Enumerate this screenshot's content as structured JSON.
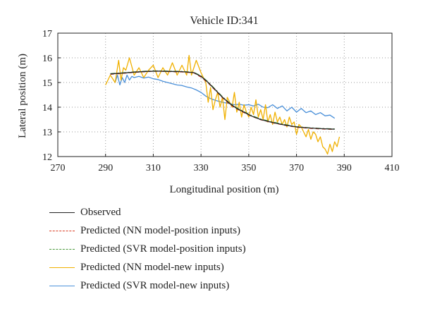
{
  "chart_data": {
    "type": "line",
    "title": "Vehicle ID:341",
    "xlabel": "Longitudinal position (m)",
    "ylabel": "Lateral position (m)",
    "xlim": [
      270,
      410
    ],
    "ylim": [
      12,
      17
    ],
    "xticks": [
      270,
      290,
      310,
      330,
      350,
      370,
      390,
      410
    ],
    "yticks": [
      12,
      13,
      14,
      15,
      16,
      17
    ],
    "grid": "dotted",
    "legend_position": "below",
    "series": [
      {
        "name": "Observed",
        "color": "#222222",
        "dash": "solid",
        "x": [
          292,
          297,
          302,
          307,
          312,
          317,
          322,
          327,
          330,
          333,
          336,
          339,
          342,
          345,
          348,
          351,
          355,
          360,
          365,
          370,
          375,
          380,
          386
        ],
        "y": [
          15.35,
          15.38,
          15.42,
          15.45,
          15.46,
          15.45,
          15.44,
          15.4,
          15.25,
          15.0,
          14.7,
          14.4,
          14.15,
          13.95,
          13.8,
          13.65,
          13.5,
          13.38,
          13.28,
          13.2,
          13.16,
          13.13,
          13.11
        ]
      },
      {
        "name": "Predicted (NN model-position inputs)",
        "color": "#d93a20",
        "dash": "5,4",
        "x": [
          292,
          297,
          302,
          307,
          312,
          317,
          322,
          327,
          330,
          333,
          336,
          339,
          342,
          345,
          348,
          351,
          355,
          360,
          365,
          370,
          375,
          380,
          386
        ],
        "y": [
          15.33,
          15.37,
          15.41,
          15.44,
          15.46,
          15.44,
          15.43,
          15.39,
          15.22,
          14.98,
          14.68,
          14.38,
          14.12,
          13.93,
          13.78,
          13.64,
          13.49,
          13.37,
          13.27,
          13.19,
          13.15,
          13.12,
          13.1
        ]
      },
      {
        "name": "Predicted (SVR model-position inputs)",
        "color": "#4a9a3c",
        "dash": "7,3,2,3",
        "x": [
          292,
          297,
          302,
          307,
          312,
          317,
          322,
          327,
          330,
          333,
          336,
          339,
          342,
          345,
          348,
          351,
          355,
          360,
          365,
          370,
          375,
          380,
          386
        ],
        "y": [
          15.36,
          15.39,
          15.43,
          15.46,
          15.47,
          15.46,
          15.45,
          15.41,
          15.27,
          15.02,
          14.72,
          14.42,
          14.17,
          13.97,
          13.82,
          13.67,
          13.52,
          13.4,
          13.3,
          13.21,
          13.17,
          13.14,
          13.12
        ]
      },
      {
        "name": "Predicted (NN model-new inputs)",
        "color": "#f0b000",
        "dash": "solid",
        "x": [
          290,
          292,
          294,
          295.5,
          296.5,
          297.5,
          298.5,
          300,
          302,
          304,
          306,
          308,
          310,
          312,
          314,
          316,
          318,
          320,
          322,
          324,
          325,
          326,
          328,
          330,
          332,
          333,
          334,
          335,
          336,
          337,
          338,
          339,
          340,
          341,
          342,
          343,
          344,
          345,
          346,
          347,
          348,
          349,
          350,
          351,
          352,
          353,
          354,
          355,
          356,
          357,
          358,
          359,
          360,
          361,
          362,
          363,
          364,
          365,
          366,
          367,
          368,
          369,
          370,
          371,
          372,
          373,
          374,
          375,
          376,
          377,
          378,
          379,
          380,
          381,
          382,
          383,
          384,
          385,
          386,
          387,
          388
        ],
        "y": [
          14.9,
          15.3,
          15.0,
          15.9,
          15.1,
          15.6,
          15.5,
          16.0,
          15.3,
          15.6,
          15.2,
          15.5,
          15.7,
          15.2,
          15.6,
          15.3,
          15.8,
          15.3,
          15.7,
          15.3,
          16.1,
          15.3,
          15.9,
          15.4,
          15.0,
          14.2,
          14.8,
          13.9,
          14.3,
          14.6,
          14.0,
          14.4,
          13.5,
          14.4,
          14.2,
          14.0,
          14.6,
          13.8,
          14.2,
          13.6,
          14.1,
          13.8,
          13.6,
          14.0,
          13.7,
          14.3,
          13.6,
          13.9,
          13.5,
          14.1,
          13.4,
          13.7,
          13.3,
          13.8,
          13.4,
          13.6,
          13.3,
          13.5,
          13.2,
          13.6,
          13.3,
          13.4,
          12.9,
          13.3,
          13.2,
          13.0,
          12.8,
          13.1,
          12.7,
          13.0,
          12.9,
          12.6,
          12.8,
          12.4,
          12.3,
          12.1,
          12.5,
          12.2,
          12.6,
          12.4,
          12.8
        ]
      },
      {
        "name": "Predicted (SVR model-new inputs)",
        "color": "#4a90d9",
        "dash": "solid",
        "x": [
          294,
          295,
          296,
          297,
          298,
          299,
          300,
          301,
          302,
          304,
          306,
          308,
          310,
          312,
          314,
          316,
          318,
          320,
          322,
          324,
          326,
          328,
          330,
          332,
          334,
          336,
          338,
          340,
          342,
          344,
          346,
          348,
          350,
          352,
          354,
          356,
          358,
          360,
          362,
          364,
          366,
          368,
          370,
          372,
          374,
          376,
          378,
          380,
          382,
          384,
          386
        ],
        "y": [
          15.0,
          15.3,
          14.9,
          15.2,
          15.0,
          15.3,
          15.1,
          15.25,
          15.2,
          15.25,
          15.18,
          15.22,
          15.15,
          15.12,
          15.05,
          15.0,
          14.95,
          14.9,
          14.88,
          14.82,
          14.78,
          14.7,
          14.6,
          14.45,
          14.35,
          14.28,
          14.22,
          14.18,
          14.15,
          14.1,
          14.12,
          14.08,
          14.1,
          14.05,
          14.12,
          14.0,
          13.98,
          14.1,
          13.95,
          14.05,
          13.85,
          14.0,
          13.8,
          13.95,
          13.78,
          13.85,
          13.7,
          13.78,
          13.65,
          13.68,
          13.55
        ]
      }
    ]
  }
}
